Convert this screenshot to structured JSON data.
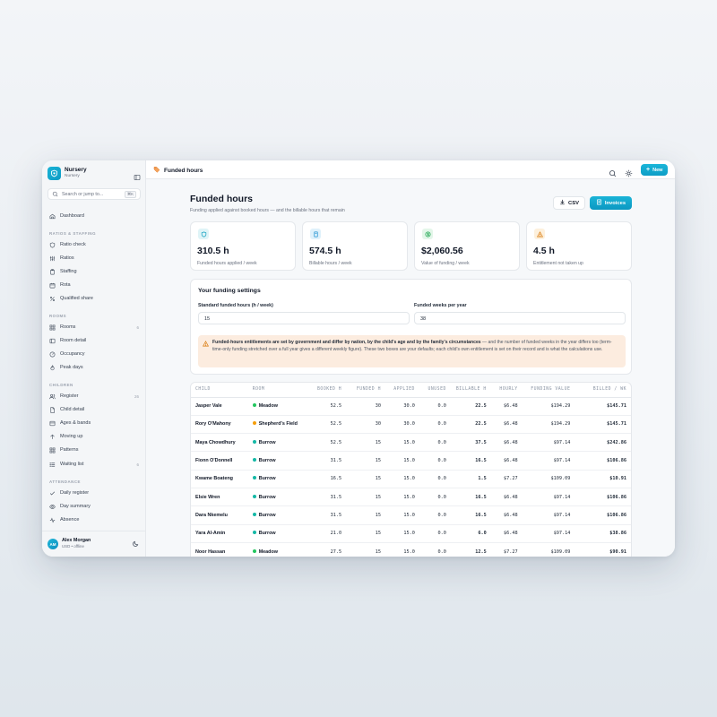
{
  "sidebar": {
    "brand_name": "Nursery",
    "brand_sub": "Nursery",
    "search_placeholder": "Search or jump to...",
    "search_shortcut": "⌘K",
    "dashboard": "Dashboard",
    "sections": {
      "ratios": "RATIOS & STAFFING",
      "rooms": "ROOMS",
      "children": "CHILDREN",
      "attendance": "ATTENDANCE"
    },
    "items": {
      "ratio_check": "Ratio check",
      "ratios": "Ratios",
      "staffing": "Staffing",
      "rota": "Rota",
      "qualified_share": "Qualified share",
      "rooms": "Rooms",
      "rooms_count": "6",
      "room_detail": "Room detail",
      "occupancy": "Occupancy",
      "peak_days": "Peak days",
      "register": "Register",
      "register_count": "26",
      "child_detail": "Child detail",
      "ages_bands": "Ages & bands",
      "moving_up": "Moving up",
      "patterns": "Patterns",
      "waiting_list": "Waiting list",
      "waiting_count": "6",
      "daily_register": "Daily register",
      "day_summary": "Day summary",
      "absence": "Absence"
    },
    "user": {
      "initials": "AM",
      "name": "Alex Morgan",
      "sub": "USD • offline"
    }
  },
  "topbar": {
    "title": "Funded hours",
    "new_label": "New"
  },
  "page": {
    "title": "Funded hours",
    "subtitle": "Funding applied against booked hours — and the billable hours that remain",
    "csv_label": "CSV",
    "invoices_label": "Invoices"
  },
  "stats": [
    {
      "value": "310.5 h",
      "label": "Funded hours applied / week"
    },
    {
      "value": "574.5 h",
      "label": "Billable hours / week"
    },
    {
      "value": "$2,060.56",
      "label": "Value of funding / week"
    },
    {
      "value": "4.5 h",
      "label": "Entitlement not taken up"
    }
  ],
  "settings": {
    "title": "Your funding settings",
    "std_hours_label": "Standard funded hours (h / week)",
    "std_hours_value": "15",
    "weeks_label": "Funded weeks per year",
    "weeks_value": "38",
    "notice_bold": "Funded-hours entitlements are set by government and differ by nation, by the child's age and by the family's circumstances",
    "notice_rest": " — and the number of funded weeks in the year differs too (term-time-only funding stretched over a full year gives a different weekly figure). These two boxes are your defaults; each child's own entitlement is set on their record and is what the calculations use."
  },
  "table": {
    "headers": [
      "CHILD",
      "ROOM",
      "BOOKED H",
      "FUNDED H",
      "APPLIED",
      "UNUSED",
      "BILLABLE H",
      "HOURLY",
      "FUNDING VALUE",
      "BILLED / WK"
    ],
    "rows": [
      {
        "child": "Jasper Vale",
        "room": "Meadow",
        "booked": "52.5",
        "funded": "30",
        "applied": "30.0",
        "unused": "0.0",
        "billable": "22.5",
        "hourly": "$6.48",
        "value": "$194.29",
        "billed": "$145.71"
      },
      {
        "child": "Rory O'Mahony",
        "room": "Shepherd's Field",
        "booked": "52.5",
        "funded": "30",
        "applied": "30.0",
        "unused": "0.0",
        "billable": "22.5",
        "hourly": "$6.48",
        "value": "$194.29",
        "billed": "$145.71"
      },
      {
        "child": "Maya Chowdhury",
        "room": "Burrow",
        "booked": "52.5",
        "funded": "15",
        "applied": "15.0",
        "unused": "0.0",
        "billable": "37.5",
        "hourly": "$6.48",
        "value": "$97.14",
        "billed": "$242.86"
      },
      {
        "child": "Fionn O'Donnell",
        "room": "Burrow",
        "booked": "31.5",
        "funded": "15",
        "applied": "15.0",
        "unused": "0.0",
        "billable": "16.5",
        "hourly": "$6.48",
        "value": "$97.14",
        "billed": "$106.86"
      },
      {
        "child": "Kwame Boateng",
        "room": "Burrow",
        "booked": "16.5",
        "funded": "15",
        "applied": "15.0",
        "unused": "0.0",
        "billable": "1.5",
        "hourly": "$7.27",
        "value": "$109.09",
        "billed": "$10.91"
      },
      {
        "child": "Elsie Wren",
        "room": "Burrow",
        "booked": "31.5",
        "funded": "15",
        "applied": "15.0",
        "unused": "0.0",
        "billable": "16.5",
        "hourly": "$6.48",
        "value": "$97.14",
        "billed": "$106.86"
      },
      {
        "child": "Dara Nkemelu",
        "room": "Burrow",
        "booked": "31.5",
        "funded": "15",
        "applied": "15.0",
        "unused": "0.0",
        "billable": "16.5",
        "hourly": "$6.48",
        "value": "$97.14",
        "billed": "$106.86"
      },
      {
        "child": "Yara Al-Amin",
        "room": "Burrow",
        "booked": "21.0",
        "funded": "15",
        "applied": "15.0",
        "unused": "0.0",
        "billable": "6.0",
        "hourly": "$6.48",
        "value": "$97.14",
        "billed": "$38.86"
      },
      {
        "child": "Noor Hassan",
        "room": "Meadow",
        "booked": "27.5",
        "funded": "15",
        "applied": "15.0",
        "unused": "0.0",
        "billable": "12.5",
        "hourly": "$7.27",
        "value": "$109.09",
        "billed": "$90.91"
      }
    ]
  },
  "colors": {
    "accent": "#13a8d0",
    "meadow": "#22c55e",
    "shepherds_field": "#f59e0b",
    "burrow": "#14b8a6"
  }
}
